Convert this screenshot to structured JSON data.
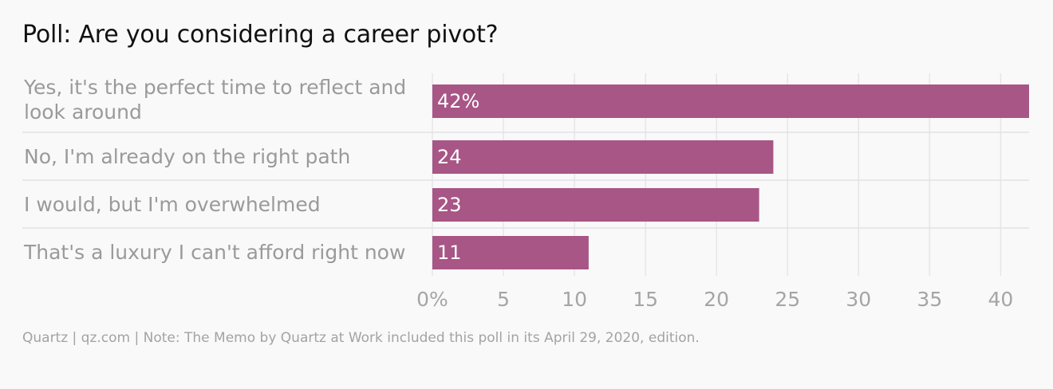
{
  "chart_data": {
    "type": "bar",
    "orientation": "horizontal",
    "title": "Poll: Are you considering a career pivot?",
    "categories": [
      "Yes, it's the perfect time to reflect and look around",
      "No, I'm already on the right path",
      "I would, but I'm overwhelmed",
      "That's a luxury I can't afford right now"
    ],
    "values": [
      42,
      24,
      23,
      11
    ],
    "data_labels": [
      "42%",
      "24",
      "23",
      "11"
    ],
    "xlim": [
      0,
      42
    ],
    "xticks": [
      0,
      5,
      10,
      15,
      20,
      25,
      30,
      35,
      40
    ],
    "xtick_labels": [
      "0%",
      "5",
      "10",
      "15",
      "20",
      "25",
      "30",
      "35",
      "40"
    ],
    "grid": true,
    "bar_color": "#a85686"
  },
  "footer": {
    "source": "Quartz | qz.com | Note: The Memo by Quartz at Work included this poll in its April 29, 2020, edition."
  }
}
